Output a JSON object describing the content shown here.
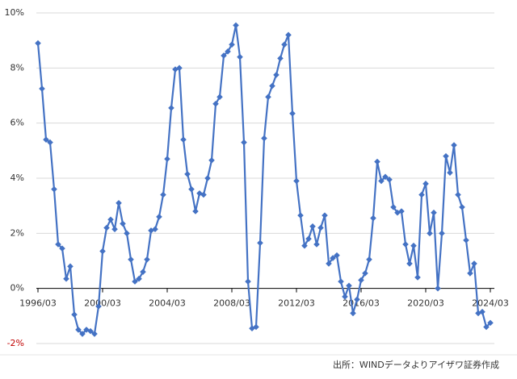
{
  "chart_data": {
    "type": "line",
    "categories": [
      "1996/03",
      null,
      null,
      null,
      null,
      null,
      null,
      null,
      null,
      null,
      null,
      null,
      null,
      null,
      null,
      null,
      "2000/03",
      null,
      null,
      null,
      null,
      null,
      null,
      null,
      null,
      null,
      null,
      null,
      null,
      null,
      null,
      null,
      "2004/03",
      null,
      null,
      null,
      null,
      null,
      null,
      null,
      null,
      null,
      null,
      null,
      null,
      null,
      null,
      null,
      "2008/03",
      null,
      null,
      null,
      null,
      null,
      null,
      null,
      null,
      null,
      null,
      null,
      null,
      null,
      null,
      null,
      "2012/03",
      null,
      null,
      null,
      null,
      null,
      null,
      null,
      null,
      null,
      null,
      null,
      null,
      null,
      null,
      null,
      "2016/03",
      null,
      null,
      null,
      null,
      null,
      null,
      null,
      null,
      null,
      null,
      null,
      null,
      null,
      null,
      null,
      "2020/03",
      null,
      null,
      null,
      null,
      null,
      null,
      null,
      null,
      null,
      null,
      null,
      null,
      null,
      null,
      null,
      "2024/03"
    ],
    "values": [
      8.9,
      7.25,
      5.4,
      5.3,
      3.6,
      1.6,
      1.45,
      0.35,
      0.8,
      -0.95,
      -1.5,
      -1.65,
      -1.5,
      -1.55,
      -1.65,
      -0.65,
      1.35,
      2.2,
      2.5,
      2.15,
      3.1,
      2.35,
      2.0,
      1.05,
      0.25,
      0.35,
      0.6,
      1.05,
      2.1,
      2.15,
      2.6,
      3.4,
      4.7,
      6.55,
      7.95,
      8.0,
      5.4,
      4.15,
      3.6,
      2.8,
      3.45,
      3.4,
      4.0,
      4.65,
      6.7,
      6.95,
      8.45,
      8.6,
      8.85,
      9.55,
      8.4,
      5.3,
      0.25,
      -1.45,
      -1.4,
      1.65,
      5.45,
      6.95,
      7.35,
      7.75,
      8.35,
      8.85,
      9.2,
      6.35,
      3.9,
      2.65,
      1.55,
      1.8,
      2.25,
      1.6,
      2.2,
      2.65,
      0.9,
      1.1,
      1.2,
      0.25,
      -0.3,
      0.1,
      -0.9,
      -0.4,
      0.3,
      0.55,
      1.05,
      2.55,
      4.6,
      3.9,
      4.05,
      3.95,
      2.95,
      2.75,
      2.8,
      1.6,
      0.9,
      1.55,
      0.4,
      3.4,
      3.8,
      2.0,
      2.75,
      0.0,
      2.0,
      4.8,
      4.2,
      5.2,
      3.4,
      2.95,
      1.75,
      0.55,
      0.9,
      -0.9,
      -0.85,
      -1.4,
      -1.25
    ],
    "color": "#4472c4",
    "ylim": [
      -2,
      10
    ],
    "yticks": [
      {
        "value": -2,
        "label": "-2%"
      },
      {
        "value": 0,
        "label": "0%"
      },
      {
        "value": 2,
        "label": "2%"
      },
      {
        "value": 4,
        "label": "4%"
      },
      {
        "value": 6,
        "label": "6%"
      },
      {
        "value": 8,
        "label": "8%"
      },
      {
        "value": 10,
        "label": "10%"
      }
    ],
    "grid": true,
    "negative_label_color": "#c00000",
    "source": "出所：WINDデータよりアイザワ証券作成"
  }
}
